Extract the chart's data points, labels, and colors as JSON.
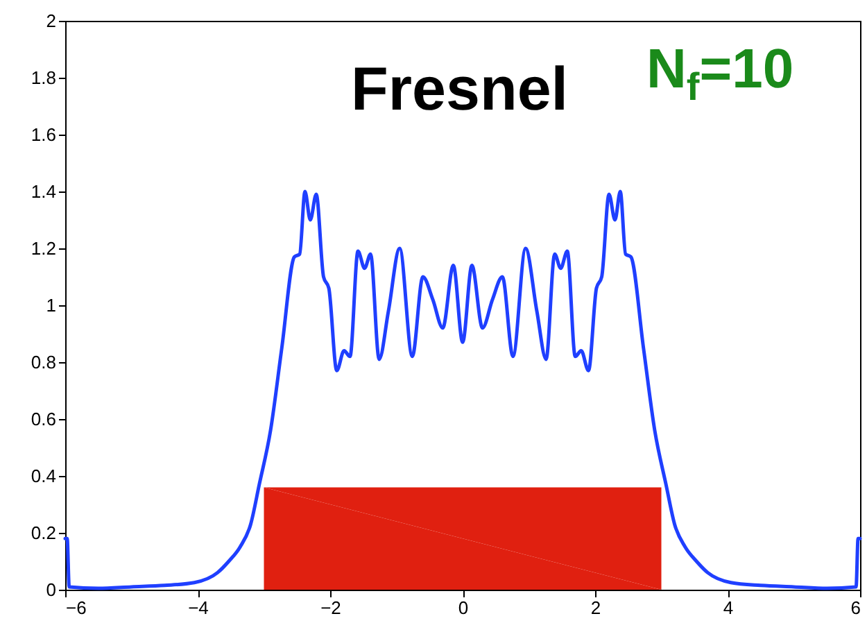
{
  "chart_data": {
    "type": "line",
    "annotations": [
      "Fresnel",
      "N$_{f}$=10"
    ],
    "xlim": [
      -6,
      6
    ],
    "xticks": [
      -6,
      -4,
      -2,
      0,
      2,
      4,
      6
    ],
    "ylim": [
      0,
      2
    ],
    "yticks": [
      0,
      0.2,
      0.4,
      0.6,
      0.8,
      1,
      1.2,
      1.4,
      1.6,
      1.8,
      2
    ],
    "grid": false,
    "series": [
      {
        "type": "area",
        "color": "#e02010",
        "x": [
          -3,
          3
        ],
        "values": [
          0.36,
          0.36
        ]
      },
      {
        "color": "#1f3fff",
        "x": [
          -6,
          -5.97,
          -5.94,
          -5.5,
          -5,
          -4.5,
          -4.05,
          -3.7,
          -3.53,
          -3.36,
          -3.2,
          -3.07,
          -2.9,
          -2.73,
          -2.54,
          -2.46,
          -2.38,
          -2.3,
          -2.21,
          -2.1,
          -2.02,
          -1.9,
          -1.79,
          -1.7,
          -1.58,
          -1.48,
          -1.39,
          -1.26,
          -1.12,
          -0.95,
          -0.76,
          -0.6,
          -0.45,
          -0.3,
          -0.14,
          0,
          0.14,
          0.3,
          0.45,
          0.6,
          0.76,
          0.95,
          1.12,
          1.26,
          1.39,
          1.48,
          1.58,
          1.7,
          1.79,
          1.9,
          2.02,
          2.1,
          2.21,
          2.3,
          2.38,
          2.46,
          2.54,
          2.73,
          2.9,
          3.07,
          3.2,
          3.36,
          3.53,
          3.7,
          4.05,
          4.5,
          5,
          5.5,
          5.94,
          5.97,
          6
        ],
        "values": [
          0.18,
          0.18,
          0.01,
          0.005,
          0.01,
          0.015,
          0.025,
          0.06,
          0.1,
          0.15,
          0.23,
          0.37,
          0.56,
          0.85,
          1.17,
          1.18,
          1.4,
          1.3,
          1.39,
          1.1,
          1.06,
          0.77,
          0.84,
          0.82,
          1.19,
          1.13,
          1.18,
          0.81,
          0.98,
          1.2,
          0.82,
          1.1,
          1.02,
          0.92,
          1.14,
          0.87,
          1.14,
          0.92,
          1.02,
          1.1,
          0.82,
          1.2,
          0.98,
          0.81,
          1.18,
          1.13,
          1.19,
          0.82,
          0.84,
          0.77,
          1.06,
          1.1,
          1.39,
          1.3,
          1.4,
          1.18,
          1.17,
          0.85,
          0.56,
          0.37,
          0.23,
          0.15,
          0.1,
          0.06,
          0.025,
          0.015,
          0.01,
          0.005,
          0.01,
          0.18,
          0.18
        ]
      }
    ]
  }
}
